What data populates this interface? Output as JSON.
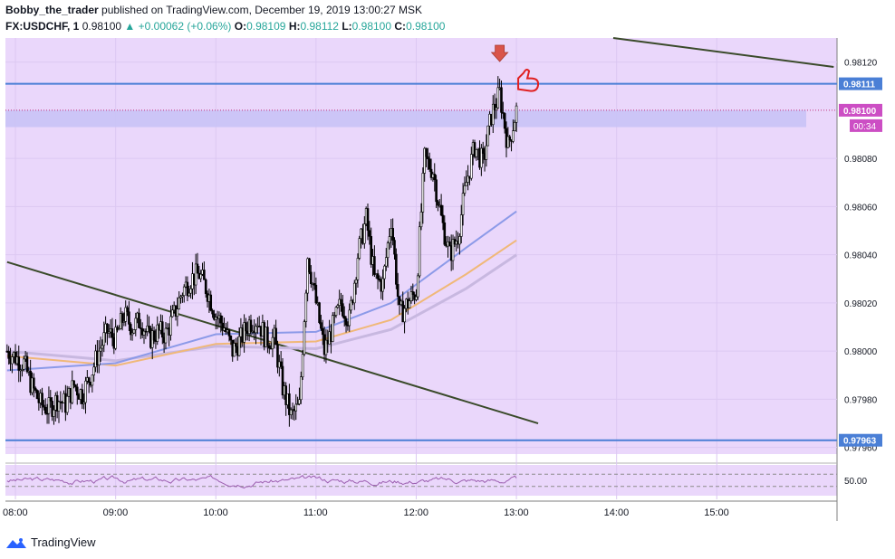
{
  "header": {
    "author": "Bobby_the_trader",
    "published_text": "published on TradingView.com, December 19, 2019 13:00:27 MSK",
    "symbol": "FX:USDCHF, 1",
    "last": "0.98100",
    "change": "▲ +0.00062 (+0.06%)",
    "o_label": "O:",
    "o_value": "0.98109",
    "h_label": "H:",
    "h_value": "0.98112",
    "l_label": "L:",
    "l_value": "0.98100",
    "c_label": "C:",
    "c_value": "0.98100"
  },
  "footer": {
    "brand": "TradingView"
  },
  "colors": {
    "panel_bg": "#ead7fb",
    "level_line": "#4a7fd6",
    "zone": "#c9c3f6",
    "trendline": "#3a4a2a",
    "candle_up": "#ffffff",
    "candle_down": "#000000",
    "ma_fast": "#8c9ae8",
    "ma_mid": "#f0b878",
    "ma_slow": "#c8b8e0",
    "rsi": "#9c5fb0",
    "price_tag": "#cc4ec4",
    "arrow": "#d9544a",
    "hand": "#e02020"
  },
  "chart_data": {
    "type": "candlestick",
    "symbol": "FX:USDCHF",
    "timeframe": "1",
    "y_ticks": [
      "0.98120",
      "0.98080",
      "0.98060",
      "0.98040",
      "0.98020",
      "0.98000",
      "0.97980",
      "0.97960"
    ],
    "y_range": [
      0.97955,
      0.9813
    ],
    "x_ticks": [
      "08:00",
      "09:00",
      "10:00",
      "11:00",
      "12:00",
      "13:00",
      "14:00",
      "15:00"
    ],
    "x_range_hours": [
      7.9,
      16.2
    ],
    "levels": [
      {
        "value": 0.98111,
        "label": "0.98111"
      },
      {
        "value": 0.97963,
        "label": "0.97963"
      }
    ],
    "current_price": {
      "value": 0.981,
      "label": "0.98100",
      "countdown": "00:34"
    },
    "zone": [
      0.98093,
      0.981
    ],
    "trendlines": [
      {
        "from": [
          "07:55",
          0.98037
        ],
        "to": [
          "13:13",
          0.9797
        ]
      },
      {
        "from": [
          "13:58",
          0.9813
        ],
        "to": [
          "16:10",
          0.98118
        ]
      }
    ],
    "close_path": [
      [
        "07:55",
        0.98
      ],
      [
        "08:05",
        0.97995
      ],
      [
        "08:10",
        0.97985
      ],
      [
        "08:15",
        0.97978
      ],
      [
        "08:20",
        0.97976
      ],
      [
        "08:25",
        0.9798
      ],
      [
        "08:30",
        0.97978
      ],
      [
        "08:35",
        0.97986
      ],
      [
        "08:40",
        0.97982
      ],
      [
        "08:45",
        0.9799
      ],
      [
        "08:50",
        0.98
      ],
      [
        "08:55",
        0.98008
      ],
      [
        "09:00",
        0.98005
      ],
      [
        "09:05",
        0.98015
      ],
      [
        "09:10",
        0.9801
      ],
      [
        "09:15",
        0.98013
      ],
      [
        "09:20",
        0.98005
      ],
      [
        "09:25",
        0.98008
      ],
      [
        "09:30",
        0.98007
      ],
      [
        "09:35",
        0.98015
      ],
      [
        "09:40",
        0.98025
      ],
      [
        "09:45",
        0.9803
      ],
      [
        "09:50",
        0.98032
      ],
      [
        "09:55",
        0.98025
      ],
      [
        "10:00",
        0.98015
      ],
      [
        "10:05",
        0.9801
      ],
      [
        "10:10",
        0.98
      ],
      [
        "10:15",
        0.98005
      ],
      [
        "10:20",
        0.98012
      ],
      [
        "10:25",
        0.98013
      ],
      [
        "10:30",
        0.98005
      ],
      [
        "10:35",
        0.98005
      ],
      [
        "10:40",
        0.97985
      ],
      [
        "10:45",
        0.97973
      ],
      [
        "10:50",
        0.97977
      ],
      [
        "10:55",
        0.9804
      ],
      [
        "11:00",
        0.9802
      ],
      [
        "11:05",
        0.98
      ],
      [
        "11:10",
        0.9801
      ],
      [
        "11:15",
        0.9802
      ],
      [
        "11:20",
        0.98013
      ],
      [
        "11:25",
        0.9804
      ],
      [
        "11:30",
        0.98055
      ],
      [
        "11:35",
        0.9803
      ],
      [
        "11:40",
        0.98028
      ],
      [
        "11:45",
        0.98055
      ],
      [
        "11:50",
        0.98015
      ],
      [
        "11:55",
        0.9802
      ],
      [
        "12:00",
        0.98025
      ],
      [
        "12:05",
        0.9808
      ],
      [
        "12:10",
        0.98075
      ],
      [
        "12:15",
        0.98055
      ],
      [
        "12:20",
        0.9804
      ],
      [
        "12:25",
        0.98048
      ],
      [
        "12:30",
        0.9807
      ],
      [
        "12:35",
        0.98085
      ],
      [
        "12:40",
        0.98078
      ],
      [
        "12:45",
        0.98098
      ],
      [
        "12:50",
        0.98107
      ],
      [
        "12:55",
        0.98085
      ],
      [
        "13:00",
        0.981
      ]
    ],
    "ma_fast": [
      [
        "07:55",
        0.97992
      ],
      [
        "09:00",
        0.97995
      ],
      [
        "10:00",
        0.98007
      ],
      [
        "11:00",
        0.98008
      ],
      [
        "11:45",
        0.9802
      ],
      [
        "12:30",
        0.98043
      ],
      [
        "13:00",
        0.98058
      ]
    ],
    "ma_mid": [
      [
        "07:55",
        0.97998
      ],
      [
        "09:00",
        0.97994
      ],
      [
        "10:00",
        0.98003
      ],
      [
        "11:00",
        0.98004
      ],
      [
        "11:45",
        0.98013
      ],
      [
        "12:30",
        0.98032
      ],
      [
        "13:00",
        0.98046
      ]
    ],
    "ma_slow": [
      [
        "07:55",
        0.98
      ],
      [
        "09:00",
        0.97996
      ],
      [
        "10:00",
        0.98002
      ],
      [
        "11:00",
        0.98001
      ],
      [
        "11:45",
        0.98009
      ],
      [
        "12:30",
        0.98026
      ],
      [
        "13:00",
        0.9804
      ]
    ],
    "rsi": {
      "label": "50.00",
      "upper": 70,
      "lower": 30
    }
  }
}
